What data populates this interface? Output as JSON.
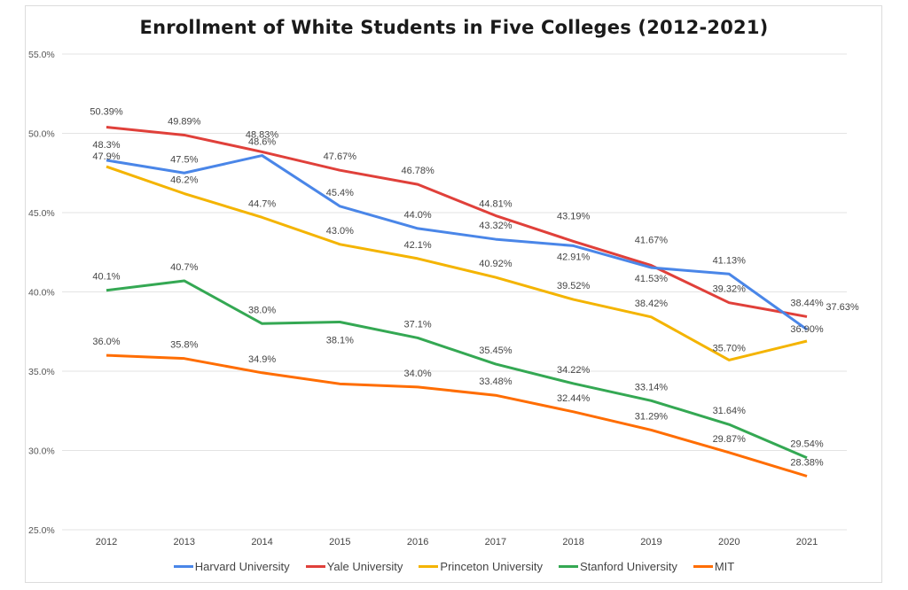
{
  "chart_data": {
    "type": "line",
    "title": "Enrollment of White Students in Five Colleges (2012-2021)",
    "xlabel": "",
    "ylabel": "",
    "x": [
      "2012",
      "2013",
      "2014",
      "2015",
      "2016",
      "2017",
      "2018",
      "2019",
      "2020",
      "2021"
    ],
    "ylim": [
      25.0,
      55.0
    ],
    "yticks": [
      "25.0%",
      "30.0%",
      "35.0%",
      "40.0%",
      "45.0%",
      "50.0%",
      "55.0%"
    ],
    "ytick_values": [
      25,
      30,
      35,
      40,
      45,
      50,
      55
    ],
    "grid": true,
    "legend_position": "bottom",
    "series": [
      {
        "name": "Harvard University",
        "color": "#4a86e8",
        "values": [
          48.3,
          47.5,
          48.6,
          45.4,
          44.0,
          43.32,
          42.91,
          41.53,
          41.13,
          37.63
        ],
        "labels": [
          "48.3%",
          "47.5%",
          "48.6%",
          "45.4%",
          "44.0%",
          "43.32%",
          "42.91%",
          "41.53%",
          "41.13%",
          "37.63%"
        ]
      },
      {
        "name": "Yale University",
        "color": "#e0403a",
        "values": [
          50.39,
          49.89,
          48.83,
          47.67,
          46.78,
          44.81,
          43.19,
          41.67,
          39.32,
          38.44
        ],
        "labels": [
          "50.39%",
          "49.89%",
          "48.83%",
          "47.67%",
          "46.78%",
          "44.81%",
          "43.19%",
          "41.67%",
          "39.32%",
          "38.44%"
        ]
      },
      {
        "name": "Princeton University",
        "color": "#f4b400",
        "values": [
          47.9,
          46.2,
          44.7,
          43.0,
          42.1,
          40.92,
          39.52,
          38.42,
          35.7,
          36.9
        ],
        "labels": [
          "47.9%",
          "46.2%",
          "44.7%",
          "43.0%",
          "42.1%",
          "40.92%",
          "39.52%",
          "38.42%",
          "35.70%",
          "36.90%"
        ]
      },
      {
        "name": "Stanford University",
        "color": "#34a853",
        "values": [
          40.1,
          40.7,
          38.0,
          38.1,
          37.1,
          35.45,
          34.22,
          33.14,
          31.64,
          29.54
        ],
        "labels": [
          "40.1%",
          "40.7%",
          "38.0%",
          "38.1%",
          "37.1%",
          "35.45%",
          "34.22%",
          "33.14%",
          "31.64%",
          "29.54%"
        ]
      },
      {
        "name": "MIT",
        "color": "#ff6d01",
        "values": [
          36.0,
          35.8,
          34.9,
          34.2,
          34.0,
          33.48,
          32.44,
          31.29,
          29.87,
          28.38
        ],
        "labels": [
          "36.0%",
          "35.8%",
          "34.9%",
          "",
          "34.0%",
          "33.48%",
          "32.44%",
          "31.29%",
          "29.87%",
          "28.38%"
        ]
      }
    ]
  }
}
